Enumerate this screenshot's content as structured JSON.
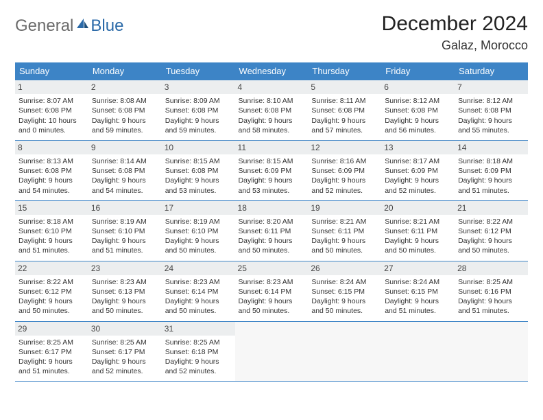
{
  "brand": {
    "part1": "General",
    "part2": "Blue"
  },
  "title": "December 2024",
  "location": "Galaz, Morocco",
  "colors": {
    "header_bg": "#3d84c6",
    "header_text": "#ffffff",
    "daynum_bg": "#eceeef",
    "border": "#3d84c6",
    "body_text": "#333333",
    "brand_gray": "#6b6b6b",
    "brand_blue": "#2b6aa8"
  },
  "weekdays": [
    "Sunday",
    "Monday",
    "Tuesday",
    "Wednesday",
    "Thursday",
    "Friday",
    "Saturday"
  ],
  "weeks": [
    [
      {
        "n": "1",
        "sr": "Sunrise: 8:07 AM",
        "ss": "Sunset: 6:08 PM",
        "dl": "Daylight: 10 hours and 0 minutes."
      },
      {
        "n": "2",
        "sr": "Sunrise: 8:08 AM",
        "ss": "Sunset: 6:08 PM",
        "dl": "Daylight: 9 hours and 59 minutes."
      },
      {
        "n": "3",
        "sr": "Sunrise: 8:09 AM",
        "ss": "Sunset: 6:08 PM",
        "dl": "Daylight: 9 hours and 59 minutes."
      },
      {
        "n": "4",
        "sr": "Sunrise: 8:10 AM",
        "ss": "Sunset: 6:08 PM",
        "dl": "Daylight: 9 hours and 58 minutes."
      },
      {
        "n": "5",
        "sr": "Sunrise: 8:11 AM",
        "ss": "Sunset: 6:08 PM",
        "dl": "Daylight: 9 hours and 57 minutes."
      },
      {
        "n": "6",
        "sr": "Sunrise: 8:12 AM",
        "ss": "Sunset: 6:08 PM",
        "dl": "Daylight: 9 hours and 56 minutes."
      },
      {
        "n": "7",
        "sr": "Sunrise: 8:12 AM",
        "ss": "Sunset: 6:08 PM",
        "dl": "Daylight: 9 hours and 55 minutes."
      }
    ],
    [
      {
        "n": "8",
        "sr": "Sunrise: 8:13 AM",
        "ss": "Sunset: 6:08 PM",
        "dl": "Daylight: 9 hours and 54 minutes."
      },
      {
        "n": "9",
        "sr": "Sunrise: 8:14 AM",
        "ss": "Sunset: 6:08 PM",
        "dl": "Daylight: 9 hours and 54 minutes."
      },
      {
        "n": "10",
        "sr": "Sunrise: 8:15 AM",
        "ss": "Sunset: 6:08 PM",
        "dl": "Daylight: 9 hours and 53 minutes."
      },
      {
        "n": "11",
        "sr": "Sunrise: 8:15 AM",
        "ss": "Sunset: 6:09 PM",
        "dl": "Daylight: 9 hours and 53 minutes."
      },
      {
        "n": "12",
        "sr": "Sunrise: 8:16 AM",
        "ss": "Sunset: 6:09 PM",
        "dl": "Daylight: 9 hours and 52 minutes."
      },
      {
        "n": "13",
        "sr": "Sunrise: 8:17 AM",
        "ss": "Sunset: 6:09 PM",
        "dl": "Daylight: 9 hours and 52 minutes."
      },
      {
        "n": "14",
        "sr": "Sunrise: 8:18 AM",
        "ss": "Sunset: 6:09 PM",
        "dl": "Daylight: 9 hours and 51 minutes."
      }
    ],
    [
      {
        "n": "15",
        "sr": "Sunrise: 8:18 AM",
        "ss": "Sunset: 6:10 PM",
        "dl": "Daylight: 9 hours and 51 minutes."
      },
      {
        "n": "16",
        "sr": "Sunrise: 8:19 AM",
        "ss": "Sunset: 6:10 PM",
        "dl": "Daylight: 9 hours and 51 minutes."
      },
      {
        "n": "17",
        "sr": "Sunrise: 8:19 AM",
        "ss": "Sunset: 6:10 PM",
        "dl": "Daylight: 9 hours and 50 minutes."
      },
      {
        "n": "18",
        "sr": "Sunrise: 8:20 AM",
        "ss": "Sunset: 6:11 PM",
        "dl": "Daylight: 9 hours and 50 minutes."
      },
      {
        "n": "19",
        "sr": "Sunrise: 8:21 AM",
        "ss": "Sunset: 6:11 PM",
        "dl": "Daylight: 9 hours and 50 minutes."
      },
      {
        "n": "20",
        "sr": "Sunrise: 8:21 AM",
        "ss": "Sunset: 6:11 PM",
        "dl": "Daylight: 9 hours and 50 minutes."
      },
      {
        "n": "21",
        "sr": "Sunrise: 8:22 AM",
        "ss": "Sunset: 6:12 PM",
        "dl": "Daylight: 9 hours and 50 minutes."
      }
    ],
    [
      {
        "n": "22",
        "sr": "Sunrise: 8:22 AM",
        "ss": "Sunset: 6:12 PM",
        "dl": "Daylight: 9 hours and 50 minutes."
      },
      {
        "n": "23",
        "sr": "Sunrise: 8:23 AM",
        "ss": "Sunset: 6:13 PM",
        "dl": "Daylight: 9 hours and 50 minutes."
      },
      {
        "n": "24",
        "sr": "Sunrise: 8:23 AM",
        "ss": "Sunset: 6:14 PM",
        "dl": "Daylight: 9 hours and 50 minutes."
      },
      {
        "n": "25",
        "sr": "Sunrise: 8:23 AM",
        "ss": "Sunset: 6:14 PM",
        "dl": "Daylight: 9 hours and 50 minutes."
      },
      {
        "n": "26",
        "sr": "Sunrise: 8:24 AM",
        "ss": "Sunset: 6:15 PM",
        "dl": "Daylight: 9 hours and 50 minutes."
      },
      {
        "n": "27",
        "sr": "Sunrise: 8:24 AM",
        "ss": "Sunset: 6:15 PM",
        "dl": "Daylight: 9 hours and 51 minutes."
      },
      {
        "n": "28",
        "sr": "Sunrise: 8:25 AM",
        "ss": "Sunset: 6:16 PM",
        "dl": "Daylight: 9 hours and 51 minutes."
      }
    ],
    [
      {
        "n": "29",
        "sr": "Sunrise: 8:25 AM",
        "ss": "Sunset: 6:17 PM",
        "dl": "Daylight: 9 hours and 51 minutes."
      },
      {
        "n": "30",
        "sr": "Sunrise: 8:25 AM",
        "ss": "Sunset: 6:17 PM",
        "dl": "Daylight: 9 hours and 52 minutes."
      },
      {
        "n": "31",
        "sr": "Sunrise: 8:25 AM",
        "ss": "Sunset: 6:18 PM",
        "dl": "Daylight: 9 hours and 52 minutes."
      },
      {
        "empty": true
      },
      {
        "empty": true
      },
      {
        "empty": true
      },
      {
        "empty": true
      }
    ]
  ]
}
